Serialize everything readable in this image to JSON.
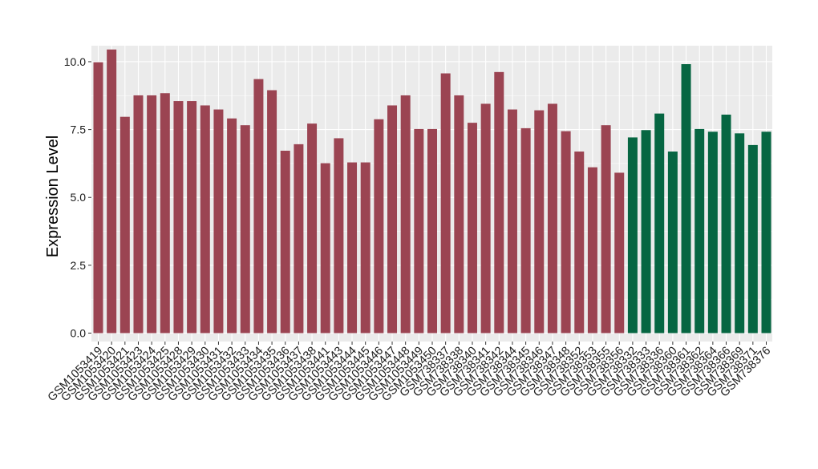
{
  "chart_data": {
    "type": "bar",
    "title": "",
    "xlabel": "",
    "ylabel": "Expression Level",
    "ylim": [
      0,
      10.9
    ],
    "yticks": [
      0.0,
      2.5,
      5.0,
      7.5,
      10.0
    ],
    "ytick_labels": [
      "0.0",
      "2.5",
      "5.0",
      "7.5",
      "10.0"
    ],
    "grid": true,
    "legend": "none",
    "colors": {
      "group1": "#9b4452",
      "group2": "#066642",
      "panel": "#ebebeb",
      "grid": "#ffffff"
    },
    "categories": [
      "GSM1053419",
      "GSM1053420",
      "GSM1053421",
      "GSM1053423",
      "GSM1053424",
      "GSM1053425",
      "GSM1053428",
      "GSM1053429",
      "GSM1053430",
      "GSM1053431",
      "GSM1053432",
      "GSM1053433",
      "GSM1053434",
      "GSM1053435",
      "GSM1053436",
      "GSM1053437",
      "GSM1053438",
      "GSM1053441",
      "GSM1053443",
      "GSM1053444",
      "GSM1053445",
      "GSM1053446",
      "GSM1053447",
      "GSM1053448",
      "GSM1053449",
      "GSM1053450",
      "GSM738337",
      "GSM738338",
      "GSM738340",
      "GSM738341",
      "GSM738342",
      "GSM738344",
      "GSM738345",
      "GSM738346",
      "GSM738347",
      "GSM738348",
      "GSM738352",
      "GSM738353",
      "GSM738355",
      "GSM738356",
      "GSM738332",
      "GSM738333",
      "GSM738336",
      "GSM738360",
      "GSM738361",
      "GSM738362",
      "GSM738364",
      "GSM738366",
      "GSM738369",
      "GSM738371",
      "GSM738376"
    ],
    "values": [
      9.98,
      10.45,
      7.97,
      8.76,
      8.76,
      8.84,
      8.55,
      8.55,
      8.39,
      8.24,
      7.91,
      7.66,
      9.36,
      8.95,
      6.72,
      6.96,
      7.72,
      6.26,
      7.18,
      6.29,
      6.29,
      7.88,
      8.39,
      8.76,
      7.52,
      7.52,
      9.57,
      8.76,
      7.75,
      8.45,
      9.62,
      8.24,
      7.55,
      8.21,
      8.45,
      7.44,
      6.69,
      6.11,
      7.66,
      5.91,
      7.21,
      7.48,
      8.09,
      6.69,
      9.91,
      7.52,
      7.42,
      8.05,
      7.36,
      6.93,
      7.42
    ],
    "groups": [
      1,
      1,
      1,
      1,
      1,
      1,
      1,
      1,
      1,
      1,
      1,
      1,
      1,
      1,
      1,
      1,
      1,
      1,
      1,
      1,
      1,
      1,
      1,
      1,
      1,
      1,
      1,
      1,
      1,
      1,
      1,
      1,
      1,
      1,
      1,
      1,
      1,
      1,
      1,
      1,
      2,
      2,
      2,
      2,
      2,
      2,
      2,
      2,
      2,
      2,
      2
    ]
  }
}
